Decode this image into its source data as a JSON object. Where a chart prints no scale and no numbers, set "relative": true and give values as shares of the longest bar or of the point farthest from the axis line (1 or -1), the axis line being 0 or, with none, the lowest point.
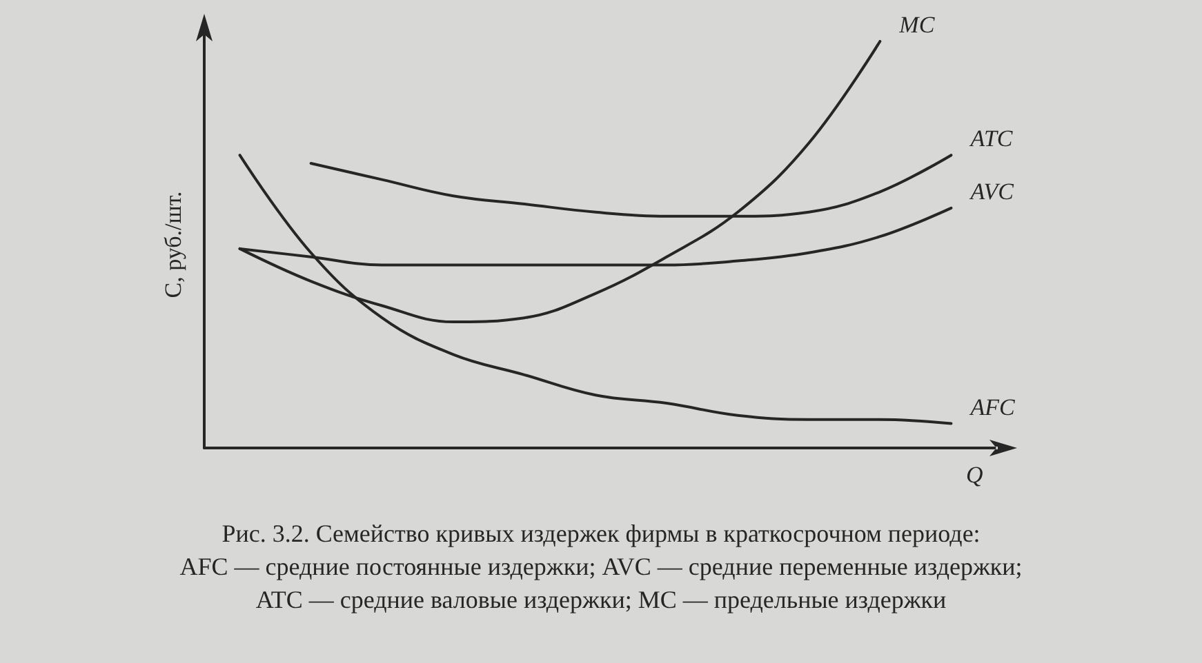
{
  "chart_data": {
    "type": "line",
    "relative": true,
    "xlabel": "Q",
    "ylabel": "C, руб./шт.",
    "categories": [
      null,
      null,
      null,
      null,
      null,
      null,
      null,
      null,
      null,
      null,
      null
    ],
    "series": [
      {
        "name": "ATC",
        "color": "#262626",
        "values": [
          null,
          0.7,
          0.66,
          0.62,
          0.6,
          0.58,
          0.57,
          0.57,
          0.58,
          0.63,
          0.72
        ]
      },
      {
        "name": "MC",
        "color": "#262626",
        "values": [
          0.49,
          0.41,
          0.35,
          0.31,
          0.32,
          0.38,
          0.47,
          0.58,
          0.75,
          1.0,
          null
        ]
      },
      {
        "name": "AVC",
        "color": "#262626",
        "values": [
          0.49,
          0.47,
          0.45,
          0.45,
          0.45,
          0.45,
          0.45,
          0.46,
          0.48,
          0.52,
          0.59
        ]
      },
      {
        "name": "AFC",
        "color": "#262626",
        "values": [
          0.72,
          0.48,
          0.32,
          0.23,
          0.18,
          0.13,
          0.11,
          0.08,
          0.07,
          0.07,
          0.06
        ]
      }
    ],
    "annotations": [
      "Рис. 3.2. Семейство кривых издержек фирмы в краткосрочном периоде:",
      "AFC — средние постоянные издержки; AVC — средние переменные издержки;",
      "ATC — средние валовые издержки; MC — предельные издержки"
    ],
    "legend": false,
    "grid": false,
    "marker": "none",
    "line_style": "solid"
  }
}
